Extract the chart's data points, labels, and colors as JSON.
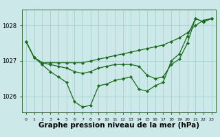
{
  "xlabel": "Graphe pression niveau de la mer (hPa)",
  "x": [
    0,
    1,
    2,
    3,
    4,
    5,
    6,
    7,
    8,
    9,
    10,
    11,
    12,
    13,
    14,
    15,
    16,
    17,
    18,
    19,
    20,
    21,
    22,
    23
  ],
  "line1": [
    1027.55,
    1027.1,
    1026.95,
    1026.95,
    1026.95,
    1026.95,
    1026.95,
    1026.95,
    1027.0,
    1027.05,
    1027.1,
    1027.15,
    1027.2,
    1027.25,
    1027.3,
    1027.35,
    1027.4,
    1027.45,
    1027.55,
    1027.65,
    1027.8,
    1028.0,
    1028.15,
    1028.2
  ],
  "line2": [
    1027.55,
    1027.1,
    1026.95,
    1026.9,
    1026.85,
    1026.8,
    1026.7,
    1026.65,
    1026.7,
    1026.8,
    1026.85,
    1026.9,
    1026.9,
    1026.9,
    1026.85,
    1026.6,
    1026.5,
    1026.55,
    1026.9,
    1027.05,
    1027.5,
    1028.2,
    1028.1,
    1028.2
  ],
  "line3": [
    1027.55,
    1027.1,
    1026.9,
    1026.7,
    1026.55,
    1026.4,
    1025.85,
    1025.7,
    1025.75,
    1026.3,
    1026.35,
    1026.45,
    1026.5,
    1026.55,
    1026.2,
    1026.15,
    1026.3,
    1026.4,
    1027.0,
    1027.2,
    1027.7,
    1028.2,
    1028.1,
    1028.2
  ],
  "line_color": "#1a6b1a",
  "bg_color": "#cce8e8",
  "grid_color": "#99cccc",
  "ylim": [
    1025.55,
    1028.45
  ],
  "yticks": [
    1026,
    1027,
    1028
  ],
  "xlabel_fontsize": 7.5,
  "marker": "D",
  "marker_size": 2.2,
  "linewidth": 0.9
}
